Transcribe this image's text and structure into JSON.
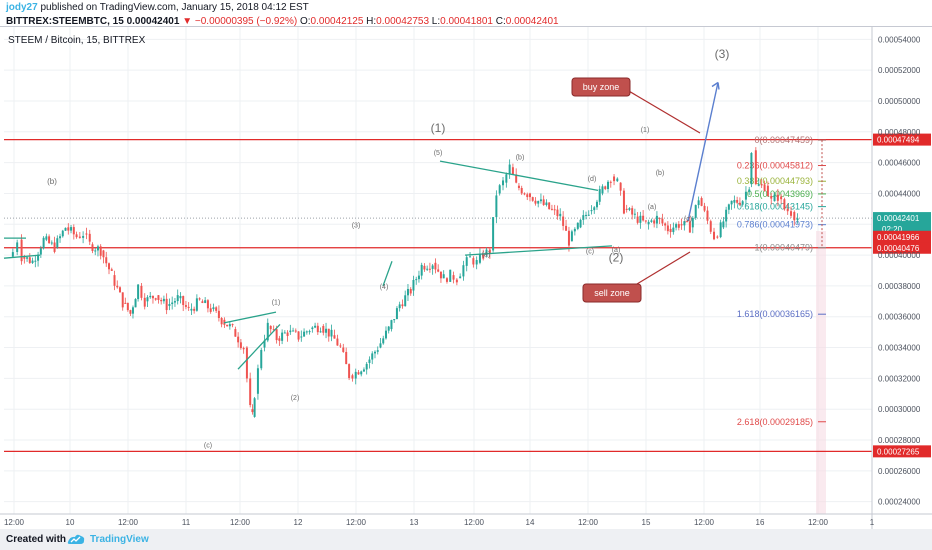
{
  "header": {
    "author": "jody27",
    "published": "published on TradingView.com, January 15, 2018 04:12 EST",
    "symbol": "BITTREX:STEEMBTC, 15",
    "last": "0.00042401",
    "arrow": "▼",
    "change": "−0.00000395 (−0.92%)",
    "o_label": "O:",
    "o": "0.00042125",
    "h_label": "H:",
    "h": "0.00042753",
    "l_label": "L:",
    "l": "0.00041801",
    "c_label": "C:",
    "c": "0.00042401"
  },
  "pane_title": "STEEM / Bitcoin, 15, BITTREX",
  "footer": {
    "made_with": "Created with",
    "brand": "TradingView"
  },
  "colors": {
    "up": "#26a69a",
    "down": "#ef5350",
    "red_line": "#e12a2a",
    "trend": "#2aa38b",
    "arrow": "#5b7fcf",
    "callout_bg": "#c0504d",
    "label_red": "#e04a4a"
  },
  "icons": [
    "tradingview-logo-icon"
  ],
  "chart_data": {
    "type": "candlestick",
    "title": "STEEM / Bitcoin, 15, BITTREX",
    "ylim": [
      0.000232,
      0.000548
    ],
    "y_ticks": [
      "0.00054000",
      "0.00052000",
      "0.00050000",
      "0.00048000",
      "0.00046000",
      "0.00044000",
      "0.00042000",
      "0.00040000",
      "0.00038000",
      "0.00036000",
      "0.00034000",
      "0.00032000",
      "0.00030000",
      "0.00028000",
      "0.00026000",
      "0.00024000"
    ],
    "x_ticks": [
      "12:00",
      "10",
      "12:00",
      "11",
      "12:00",
      "12",
      "12:00",
      "13",
      "12:00",
      "14",
      "12:00",
      "15",
      "12:00",
      "16",
      "12:00",
      "1"
    ],
    "grid": true,
    "price_path": [
      [
        0.0004,
        0.000399
      ],
      [
        0.00076,
        0.000402
      ],
      [
        0.00113,
        0.00041
      ],
      [
        0.00151,
        0.000399
      ],
      [
        0.00245,
        0.000396
      ],
      [
        0.0034,
        0.00041
      ],
      [
        0.00434,
        0.000405
      ],
      [
        0.00528,
        0.000418
      ],
      [
        0.00623,
        0.000412
      ],
      [
        0.00679,
        0.000414
      ],
      [
        0.00736,
        0.000407
      ],
      [
        0.0083,
        0.000403
      ],
      [
        0.00925,
        0.000387
      ],
      [
        0.01019,
        0.000369
      ],
      [
        0.01085,
        0.000362
      ],
      [
        0.01151,
        0.00038
      ],
      [
        0.01208,
        0.00037
      ],
      [
        0.01302,
        0.000374
      ],
      [
        0.01396,
        0.000367
      ],
      [
        0.01491,
        0.000372
      ],
      [
        0.01585,
        0.000364
      ],
      [
        0.01679,
        0.00037
      ],
      [
        0.01774,
        0.000365
      ],
      [
        0.01868,
        0.000358
      ],
      [
        0.01962,
        0.000352
      ],
      [
        0.02057,
        0.00034
      ],
      [
        0.02113,
        0.0003
      ],
      [
        0.02132,
        0.000295
      ],
      [
        0.02151,
        0.00031
      ],
      [
        0.02208,
        0.00034
      ],
      [
        0.02264,
        0.000354
      ],
      [
        0.0234,
        0.000346
      ],
      [
        0.02434,
        0.00035
      ],
      [
        0.02528,
        0.000347
      ],
      [
        0.02623,
        0.000352
      ],
      [
        0.02717,
        0.000354
      ],
      [
        0.02811,
        0.000348
      ],
      [
        0.02887,
        0.00034
      ],
      [
        0.02962,
        0.000322
      ],
      [
        0.03019,
        0.000324
      ],
      [
        0.03113,
        0.00033
      ],
      [
        0.03208,
        0.00034
      ],
      [
        0.03302,
        0.000352
      ],
      [
        0.03396,
        0.000368
      ],
      [
        0.03491,
        0.000377
      ],
      [
        0.03585,
        0.000393
      ],
      [
        0.03679,
        0.000395
      ],
      [
        0.03774,
        0.000385
      ],
      [
        0.0383,
        0.000387
      ],
      [
        0.03887,
        0.000385
      ],
      [
        0.03943,
        0.000393
      ],
      [
        0.04,
        0.000398
      ],
      [
        0.04057,
        0.000395
      ],
      [
        0.04113,
        0.0004
      ],
      [
        0.0417,
        0.000403
      ],
      [
        0.04226,
        0.00044
      ],
      [
        0.04283,
        0.000447
      ],
      [
        0.0434,
        0.000457
      ],
      [
        0.04396,
        0.000445
      ],
      [
        0.04491,
        0.00044
      ],
      [
        0.04585,
        0.000435
      ],
      [
        0.04679,
        0.00043
      ],
      [
        0.04774,
        0.000425
      ],
      [
        0.04849,
        0.000409
      ],
      [
        0.04925,
        0.000418
      ],
      [
        0.05019,
        0.000429
      ],
      [
        0.05113,
        0.00044
      ],
      [
        0.05208,
        0.000451
      ],
      [
        0.05264,
        0.000447
      ],
      [
        0.05321,
        0.00043
      ],
      [
        0.05415,
        0.000425
      ],
      [
        0.05509,
        0.00042
      ],
      [
        0.05604,
        0.000424
      ],
      [
        0.05698,
        0.000417
      ],
      [
        0.05792,
        0.00042
      ],
      [
        0.05887,
        0.000418
      ],
      [
        0.05962,
        0.000437
      ],
      [
        0.06038,
        0.000422
      ],
      [
        0.06094,
        0.000412
      ],
      [
        0.06151,
        0.000418
      ],
      [
        0.06245,
        0.000434
      ],
      [
        0.0634,
        0.000436
      ],
      [
        0.06396,
        0.000446
      ],
      [
        0.06415,
        0.000468
      ],
      [
        0.06453,
        0.000445
      ],
      [
        0.06528,
        0.000445
      ],
      [
        0.06585,
        0.000435
      ],
      [
        0.06642,
        0.000438
      ],
      [
        0.06698,
        0.00043
      ],
      [
        0.06755,
        0.000428
      ],
      [
        0.06811,
        0.000424
      ]
    ],
    "series": [
      {
        "name": "STEEMBTC close",
        "last": 0.00042401
      }
    ],
    "horizontal_lines": [
      {
        "value": 0.00047494,
        "label": "0.00047494"
      },
      {
        "value": 0.00040476,
        "label": "0.00040476"
      },
      {
        "value": 0.00027265,
        "label": "0.00027265"
      }
    ],
    "price_tags": [
      {
        "value": 0.00042401,
        "label": "0.00042401",
        "sub": "02:20"
      },
      {
        "value": 0.00041966,
        "label": "0.00041966"
      }
    ],
    "fib_levels": [
      {
        "ratio": "0",
        "label": "0(0.00047459)",
        "value": 0.00047459
      },
      {
        "ratio": "0.236",
        "label": "0.236(0.00045812)",
        "value": 0.00045812
      },
      {
        "ratio": "0.382",
        "label": "0.382(0.00044793)",
        "value": 0.00044793
      },
      {
        "ratio": "0.5",
        "label": "0.5(0.00043969)",
        "value": 0.00043969
      },
      {
        "ratio": "0.618",
        "label": "0.618(0.00043145)",
        "value": 0.00043145
      },
      {
        "ratio": "0.786",
        "label": "0.786(0.00041973)",
        "value": 0.00041973
      },
      {
        "ratio": "1",
        "label": "1(0.00040479)",
        "value": 0.00040479
      },
      {
        "ratio": "1.618",
        "label": "1.618(0.00036165)",
        "value": 0.00036165
      },
      {
        "ratio": "2.618",
        "label": "2.618(0.00029185)",
        "value": 0.00029185
      }
    ],
    "wave_labels": [
      "(b)",
      "(3)",
      "(1)",
      "(5)",
      "(b)",
      "(d)",
      "(1)",
      "(b)",
      "(a)",
      "(c)",
      "(3)",
      "(4)",
      "(a)",
      "(c)",
      "(a)",
      "(2)",
      "(1)",
      "(2)",
      "(c)"
    ],
    "callouts": [
      "buy zone",
      "sell zone"
    ]
  }
}
